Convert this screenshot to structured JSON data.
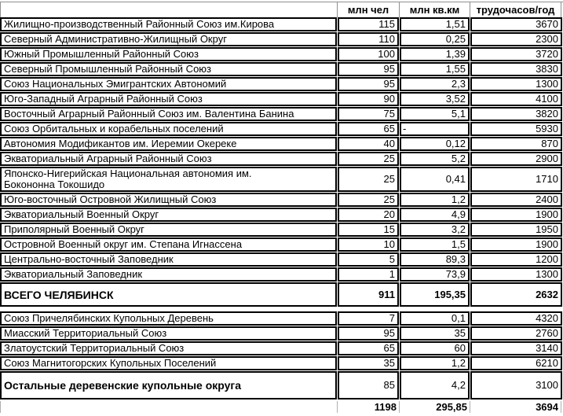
{
  "columns": {
    "name": "",
    "people": "млн чел",
    "area": "млн кв.км",
    "hours": "трудочасов/год"
  },
  "sections": {
    "chelyabinsk": {
      "rows": [
        {
          "name": "Жилищно-производственный Районный Союз им.Кирова",
          "people": "115",
          "area": "1,51",
          "hours": "3670"
        },
        {
          "name": "Северный Административно-Жилищный Округ",
          "people": "110",
          "area": "0,25",
          "hours": "2300"
        },
        {
          "name": "Южный Промышленный Районный Союз",
          "people": "100",
          "area": "1,39",
          "hours": "3720"
        },
        {
          "name": "Северный Промышленный Районный Союз",
          "people": "95",
          "area": "1,55",
          "hours": "3830"
        },
        {
          "name": "Союз Национальных Эмигрантских Автономий",
          "people": "95",
          "area": "2,3",
          "hours": "1300"
        },
        {
          "name": "Юго-Западный Аграрный Районный Союз",
          "people": "90",
          "area": "3,52",
          "hours": "4100"
        },
        {
          "name": "Восточный Аграрный Районный Союз им. Валентина Банина",
          "people": "75",
          "area": "5,1",
          "hours": "3820"
        },
        {
          "name": "Союз Орбитальных и корабельных поселений",
          "people": "65",
          "area": "-",
          "hours": "5930"
        },
        {
          "name": "Автономия Модификантов им. Иеремии Окереке",
          "people": "40",
          "area": "0,12",
          "hours": "870"
        },
        {
          "name": "Экваториальный Аграрный Районный Союз",
          "people": "25",
          "area": "5,2",
          "hours": "2900"
        },
        {
          "name": "Японско-Нигерийская Национальная автономия им.\nБокононна Токошидо",
          "people": "25",
          "area": "0,41",
          "hours": "1710"
        },
        {
          "name": "Юго-восточный Островной Жилищный Союз",
          "people": "25",
          "area": "1,2",
          "hours": "2400"
        },
        {
          "name": "Экваториальный Военный Округ",
          "people": "20",
          "area": "4,9",
          "hours": "1900"
        },
        {
          "name": "Приполярный Военный Округ",
          "people": "15",
          "area": "3,2",
          "hours": "1950"
        },
        {
          "name": "Островной Военный округ им. Степана Игнассена",
          "people": "10",
          "area": "1,5",
          "hours": "1900"
        },
        {
          "name": "Центрально-восточный Заповедник",
          "people": "5",
          "area": "89,3",
          "hours": "1200"
        },
        {
          "name": "Экваториальный Заповедник",
          "people": "1",
          "area": "73,9",
          "hours": "1300"
        }
      ],
      "subtotal": {
        "name": "ВСЕГО ЧЕЛЯБИНСК",
        "people": "911",
        "area": "195,35",
        "hours": "2632"
      }
    },
    "outer": {
      "rows": [
        {
          "name": "Союз Причелябинских Купольных Деревень",
          "people": "7",
          "area": "0,1",
          "hours": "4320"
        },
        {
          "name": "Миасский Территориальный Союз",
          "people": "95",
          "area": "35",
          "hours": "2760"
        },
        {
          "name": "Златоустский Территориальный Союз",
          "people": "65",
          "area": "60",
          "hours": "3140"
        },
        {
          "name": "Союз Магнитогорских Купольных Поселений",
          "people": "35",
          "area": "1,2",
          "hours": "6210"
        }
      ],
      "other": {
        "name": "Остальные деревенские купольные округа",
        "people": "85",
        "area": "4,2",
        "hours": "3100"
      }
    }
  },
  "grand_total": {
    "people": "1198",
    "area": "295,85",
    "hours": "3694"
  },
  "colors": {
    "border": "#000000",
    "gridline": "#9a9a9a",
    "background": "#ffffff"
  }
}
